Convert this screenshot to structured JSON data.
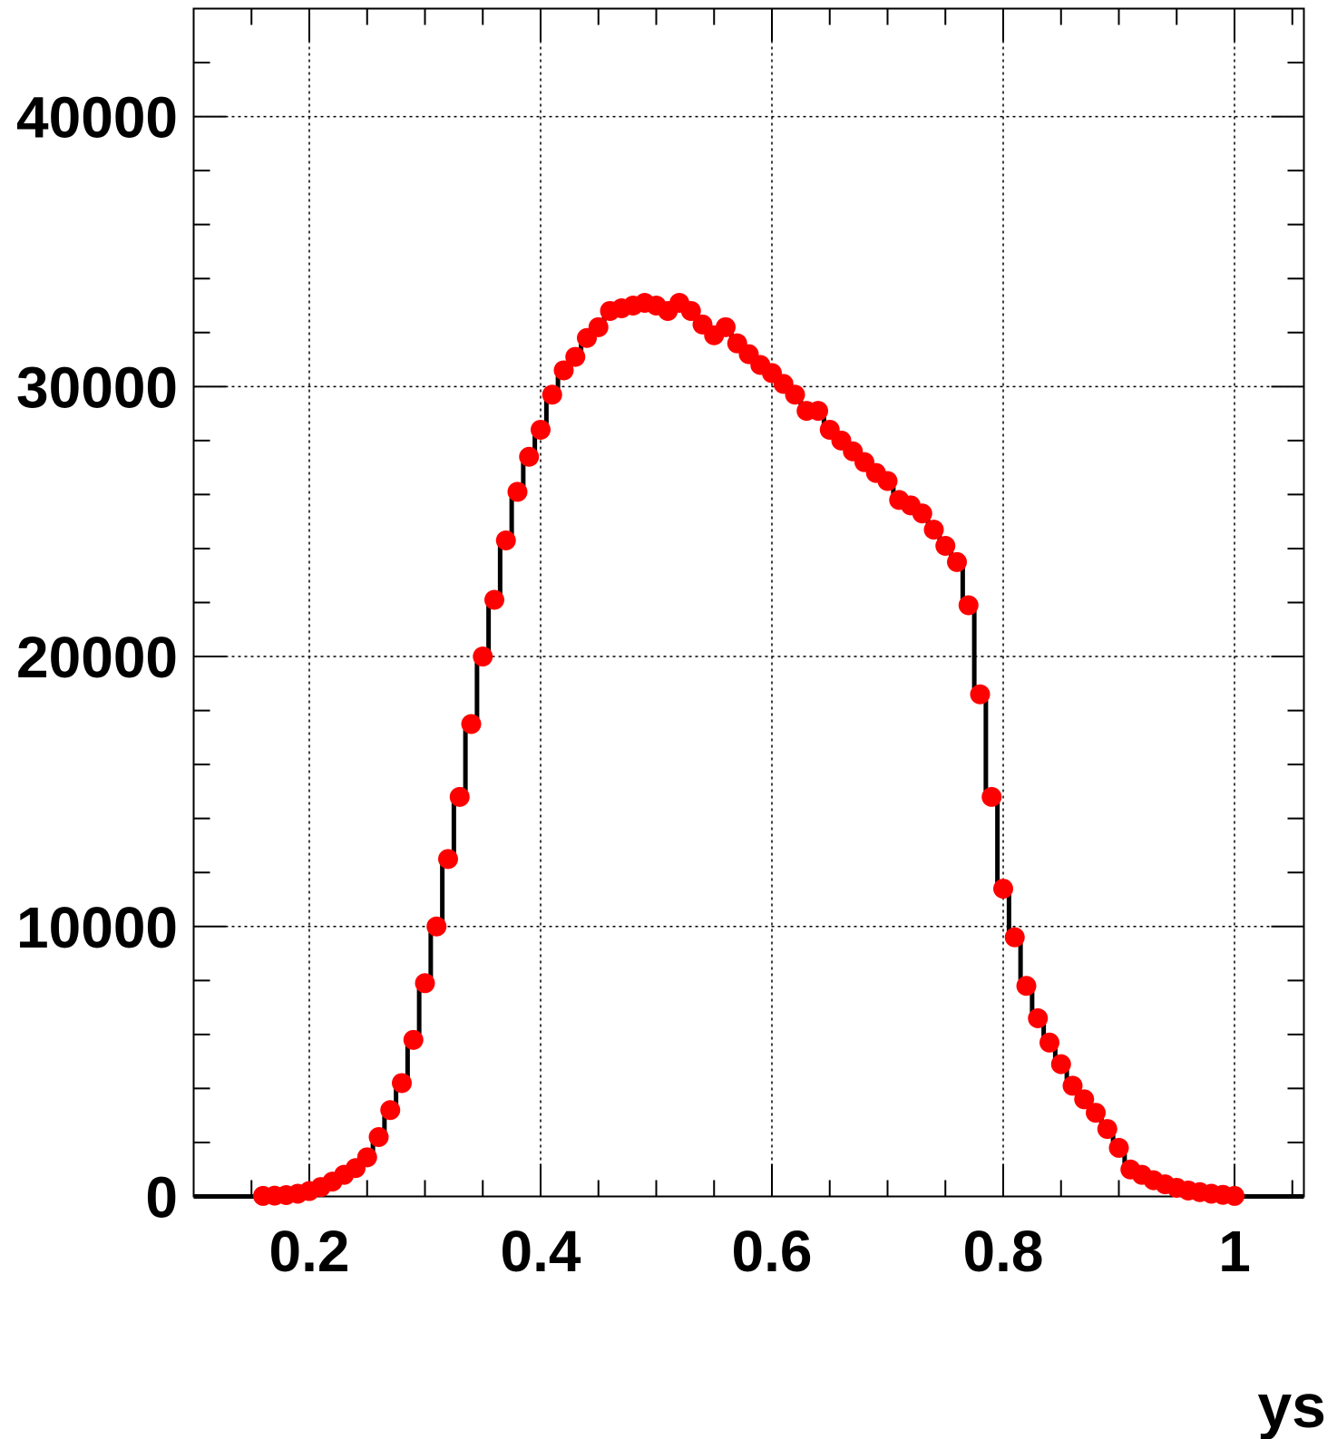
{
  "chart_data": {
    "type": "scatter",
    "title": "",
    "xlabel": "ys",
    "ylabel": "",
    "xlim": [
      0.1,
      1.06
    ],
    "ylim": [
      0,
      44000
    ],
    "grid": true,
    "x_ticks": [
      "0.2",
      "0.4",
      "0.6",
      "0.8",
      "1"
    ],
    "y_ticks": [
      "0",
      "10000",
      "20000",
      "30000",
      "40000"
    ],
    "colors": {
      "markers": "#ff0000",
      "line": "#000000",
      "grid": "#000000"
    },
    "series": [
      {
        "x": [
          0.16,
          0.17,
          0.18,
          0.19,
          0.2,
          0.21,
          0.22,
          0.23,
          0.24,
          0.25,
          0.26,
          0.27,
          0.28,
          0.29,
          0.3,
          0.31,
          0.32,
          0.33,
          0.34,
          0.35,
          0.36,
          0.37,
          0.38,
          0.39,
          0.4,
          0.41,
          0.42,
          0.43,
          0.44,
          0.45,
          0.46,
          0.47,
          0.48,
          0.49,
          0.5,
          0.51,
          0.52,
          0.53,
          0.54,
          0.55,
          0.56,
          0.57,
          0.58,
          0.59,
          0.6,
          0.61,
          0.62,
          0.63,
          0.64,
          0.65,
          0.66,
          0.67,
          0.68,
          0.69,
          0.7,
          0.71,
          0.72,
          0.73,
          0.74,
          0.75,
          0.76,
          0.77,
          0.78,
          0.79,
          0.8,
          0.81,
          0.82,
          0.83,
          0.84,
          0.85,
          0.86,
          0.87,
          0.88,
          0.89,
          0.9,
          0.91,
          0.92,
          0.93,
          0.94,
          0.95,
          0.96,
          0.97,
          0.98,
          0.99,
          1.0
        ],
        "values": [
          20,
          30,
          50,
          100,
          200,
          350,
          550,
          800,
          1050,
          1450,
          2200,
          3200,
          4200,
          5800,
          7900,
          10000,
          12500,
          14800,
          17500,
          20000,
          22100,
          24300,
          26100,
          27400,
          28400,
          29700,
          30600,
          31100,
          31800,
          32200,
          32800,
          32900,
          33000,
          33100,
          33000,
          32800,
          33100,
          32800,
          32300,
          31900,
          32200,
          31600,
          31200,
          30800,
          30500,
          30100,
          29700,
          29100,
          29100,
          28400,
          28000,
          27600,
          27200,
          26800,
          26500,
          25800,
          25600,
          25300,
          24700,
          24100,
          23500,
          21900,
          18600,
          14800,
          11400,
          9600,
          7800,
          6600,
          5700,
          4900,
          4100,
          3600,
          3100,
          2500,
          1800,
          1000,
          800,
          600,
          450,
          320,
          220,
          160,
          100,
          60,
          20
        ]
      }
    ]
  }
}
